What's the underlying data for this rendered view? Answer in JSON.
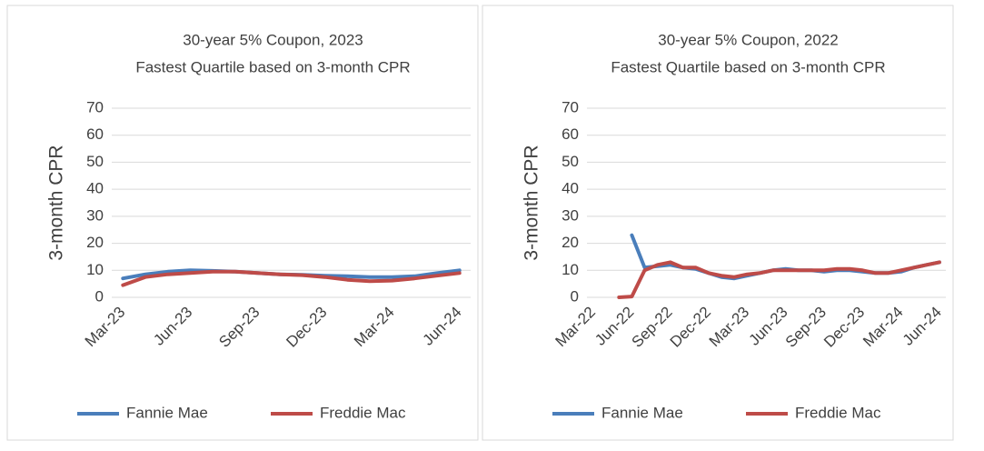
{
  "chart_data": [
    {
      "type": "line",
      "title": "30-year 5% Coupon, 2023",
      "subtitle": "Fastest Quartile based on 3-month CPR",
      "y_label": "3-month CPR",
      "categories": [
        "Mar-23",
        null,
        null,
        "Jun-23",
        null,
        null,
        "Sep-23",
        null,
        null,
        "Dec-23",
        null,
        null,
        "Mar-24",
        null,
        null,
        "Jun-24"
      ],
      "series": [
        {
          "name": "Fannie Mae",
          "color": "#4a7ebb",
          "values": [
            7,
            8.5,
            9.5,
            10,
            9.8,
            9.5,
            9,
            8.5,
            8.3,
            8,
            7.8,
            7.5,
            7.5,
            7.8,
            9,
            10
          ]
        },
        {
          "name": "Freddie Mac",
          "color": "#be4b48",
          "values": [
            4.5,
            7.5,
            8.5,
            9,
            9.5,
            9.5,
            9,
            8.5,
            8.2,
            7.5,
            6.5,
            6,
            6.2,
            7,
            8,
            9
          ]
        }
      ],
      "ylim": [
        0,
        70
      ],
      "yticks": [
        0,
        10,
        20,
        30,
        40,
        50,
        60,
        70
      ],
      "grid": true,
      "legend": "bottom"
    },
    {
      "type": "line",
      "title": "30-year 5% Coupon, 2022",
      "subtitle": "Fastest Quartile based on 3-month CPR",
      "y_label": "3-month CPR",
      "categories": [
        "Mar-22",
        null,
        null,
        "Jun-22",
        null,
        null,
        "Sep-22",
        null,
        null,
        "Dec-22",
        null,
        null,
        "Mar-23",
        null,
        null,
        "Jun-23",
        null,
        null,
        "Sep-23",
        null,
        null,
        "Dec-23",
        null,
        null,
        "Mar-24",
        null,
        null,
        "Jun-24"
      ],
      "series": [
        {
          "name": "Fannie Mae",
          "color": "#4a7ebb",
          "values": [
            null,
            null,
            null,
            23,
            11,
            11.5,
            12,
            11,
            10.5,
            9,
            7.5,
            7,
            8,
            9,
            10,
            10.5,
            10,
            10,
            9.5,
            10,
            10,
            9.5,
            9,
            9,
            9.5,
            11,
            12,
            13
          ]
        },
        {
          "name": "Freddie Mac",
          "color": "#be4b48",
          "values": [
            null,
            null,
            0,
            0.3,
            10,
            12,
            13,
            11,
            11,
            9,
            8,
            7.5,
            8.5,
            9,
            10,
            10,
            10,
            10,
            10,
            10.5,
            10.5,
            10,
            9,
            9,
            10,
            11,
            12,
            13
          ]
        }
      ],
      "ylim": [
        0,
        70
      ],
      "yticks": [
        0,
        10,
        20,
        30,
        40,
        50,
        60,
        70
      ],
      "grid": true,
      "legend": "bottom"
    }
  ]
}
